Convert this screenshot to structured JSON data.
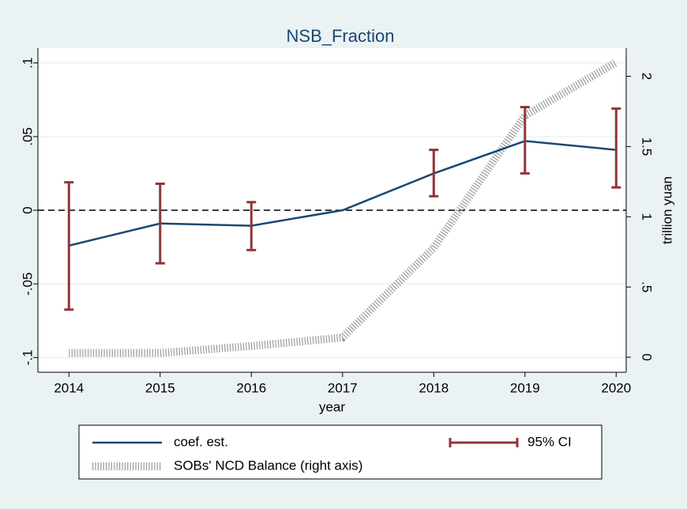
{
  "chart_data": {
    "type": "line",
    "title": "NSB_Fraction",
    "x": [
      2014,
      2015,
      2016,
      2017,
      2018,
      2019,
      2020
    ],
    "xlim": [
      2013.66,
      2020.11
    ],
    "xticks": [
      2014,
      2015,
      2016,
      2017,
      2018,
      2019,
      2020
    ],
    "ylim": [
      -0.11,
      0.11
    ],
    "yticks": [
      {
        "value": -0.1,
        "label": "-.1"
      },
      {
        "value": -0.05,
        "label": "-.05"
      },
      0,
      {
        "value": 0.05,
        "label": ".05"
      },
      {
        "value": 0.1,
        "label": ".1"
      }
    ],
    "y2lim": [
      -0.107,
      2.2
    ],
    "y2ticks": [
      0,
      {
        "value": 0.5,
        "label": ".5"
      },
      1,
      {
        "value": 1.5,
        "label": "1.5"
      },
      2
    ],
    "xlabel": "year",
    "y2label": "trillion yuan",
    "hline": 0,
    "grid": true,
    "legend": "bottom",
    "series": [
      {
        "name": "coef. est.",
        "kind": "line",
        "color": "#1a476f",
        "values": [
          -0.024,
          -0.009,
          -0.0105,
          0,
          0.025,
          0.047,
          0.041
        ]
      },
      {
        "name": "95% CI",
        "kind": "errorbar",
        "color": "#90353b",
        "low": [
          -0.0675,
          -0.036,
          -0.027,
          null,
          0.0095,
          0.025,
          0.0155
        ],
        "high": [
          0.019,
          0.018,
          0.0055,
          null,
          0.041,
          0.07,
          0.069
        ]
      },
      {
        "name": "SOBs' NCD Balance (right axis)",
        "kind": "hatched",
        "axis": "y2",
        "color": "#9a9a9a",
        "values": [
          0.03,
          0.03,
          0.08,
          0.14,
          0.78,
          1.72,
          2.1
        ]
      }
    ]
  }
}
